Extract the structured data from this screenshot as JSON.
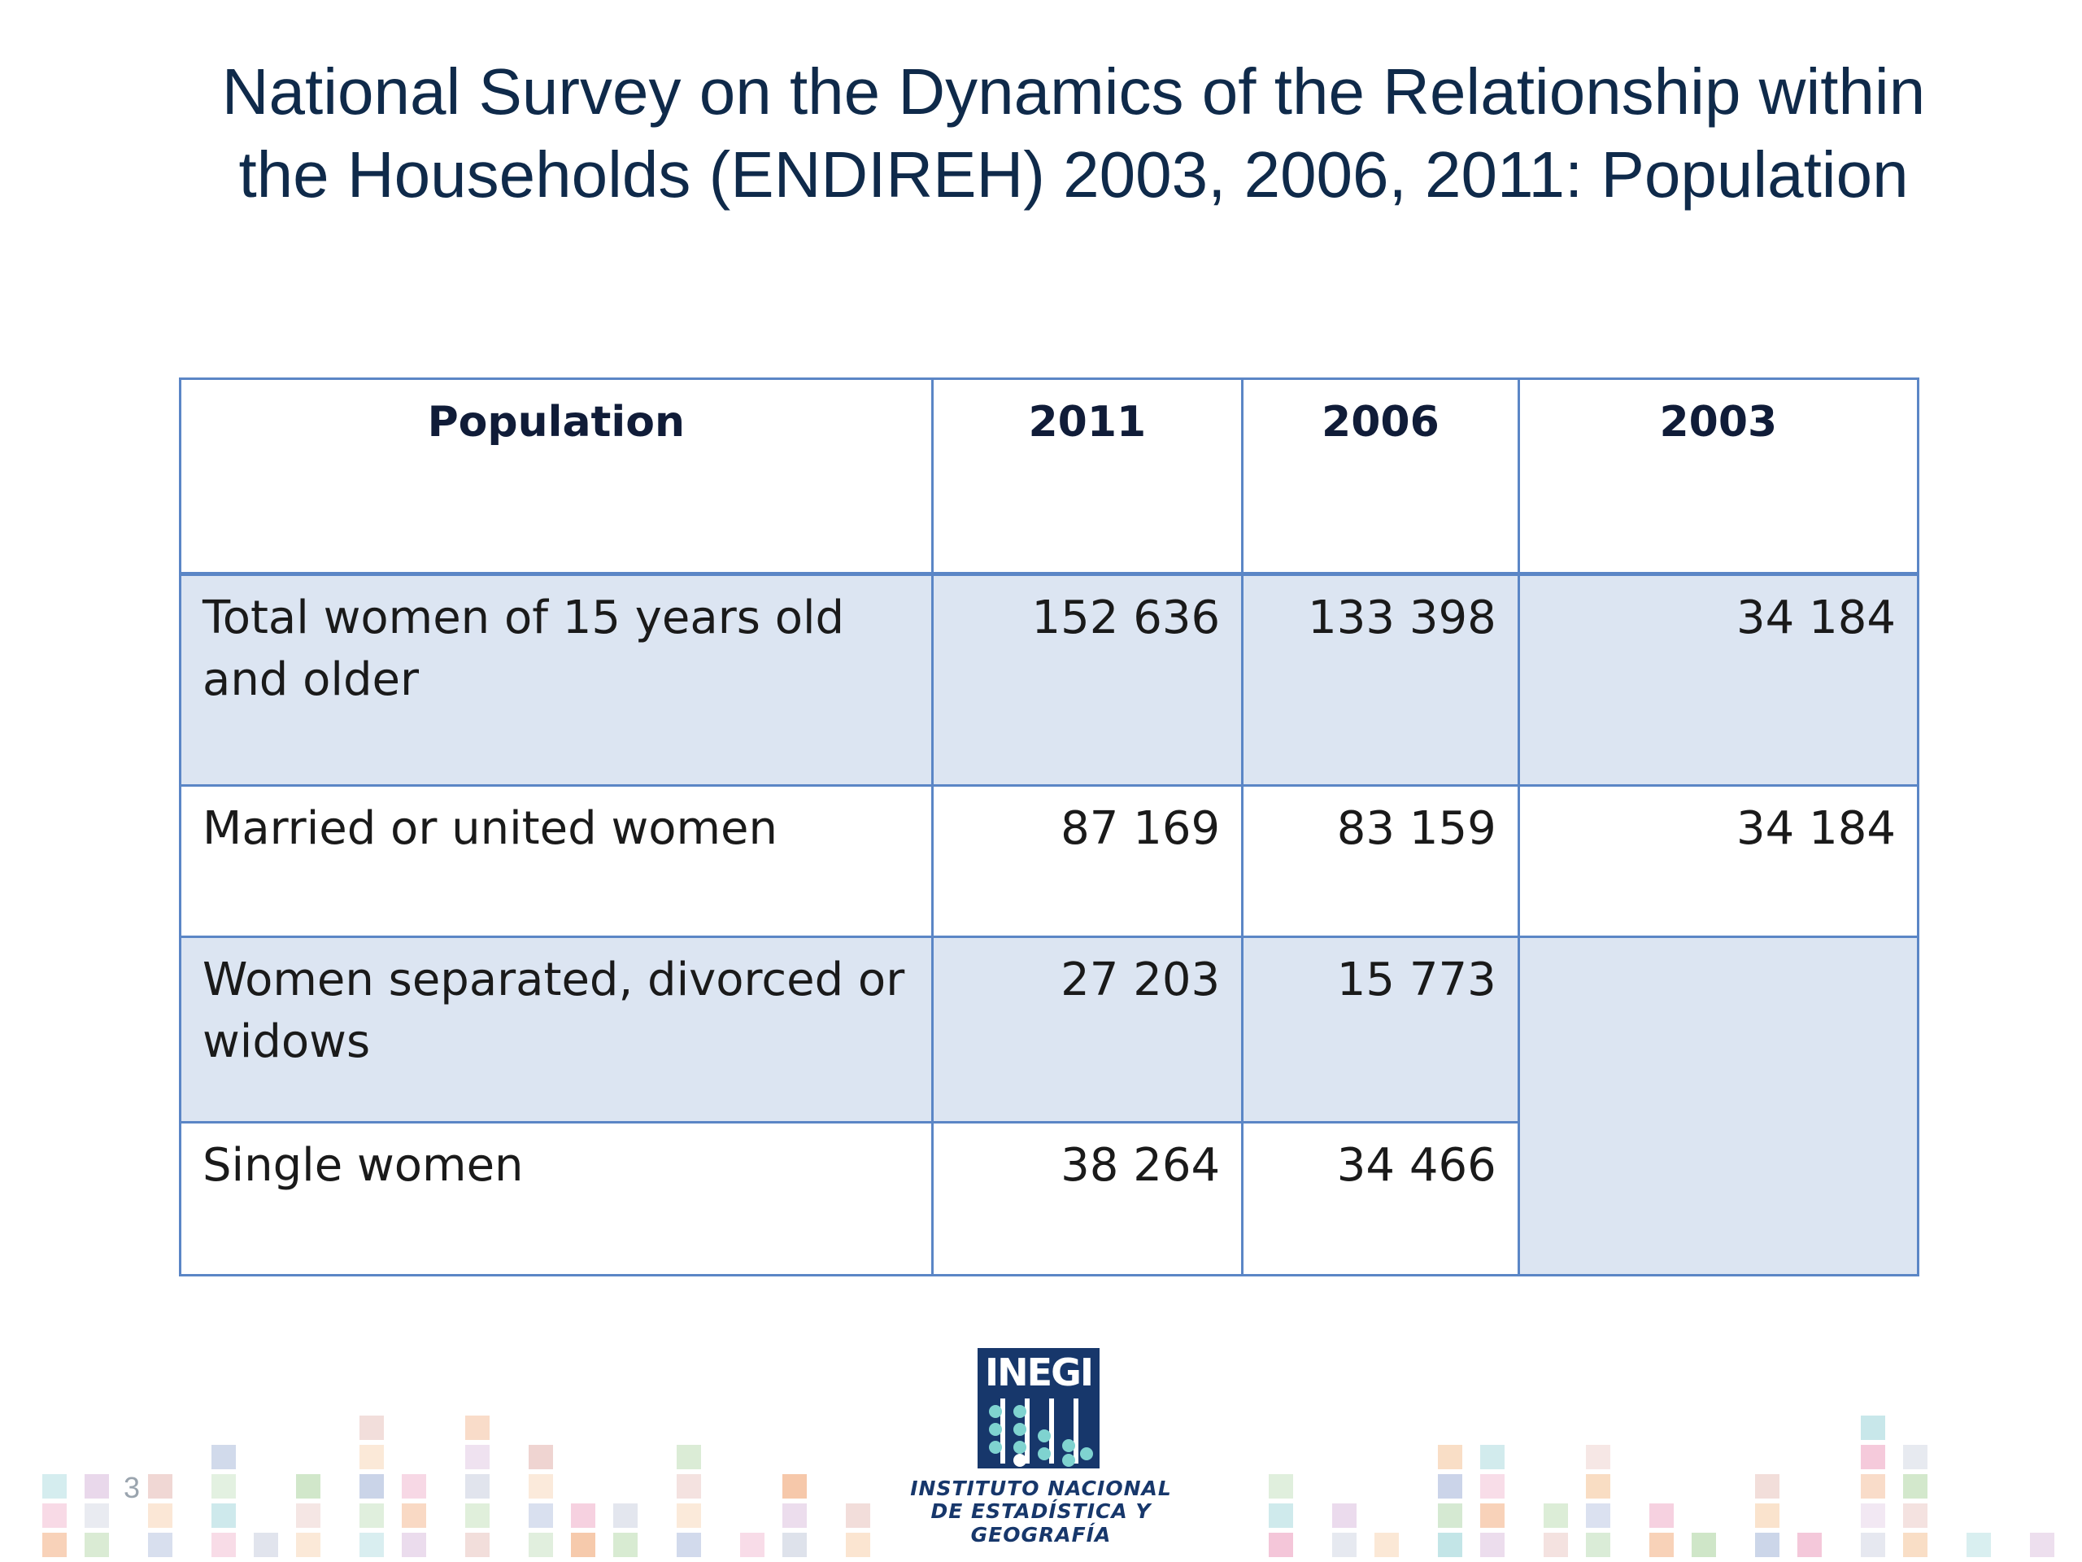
{
  "slide": {
    "title_line1": "National Survey on the Dynamics of the Relationship within",
    "title_line2": "the Households (ENDIREH) 2003, 2006, 2011: Population",
    "page_number": "3"
  },
  "table": {
    "headers": [
      "Population",
      "2011",
      "2006",
      "2003"
    ],
    "rows": [
      {
        "label": "Total women of 15 years old and older",
        "v2011": "152 636",
        "v2006": "133 398",
        "v2003": "34 184"
      },
      {
        "label": "Married or united women",
        "v2011": "87 169",
        "v2006": "83 159",
        "v2003": "34 184"
      },
      {
        "label": "Women separated, divorced or widows",
        "v2011": "27 203",
        "v2006": "15 773",
        "v2003": ""
      },
      {
        "label": "Single women",
        "v2011": "38 264",
        "v2006": "34 466"
      }
    ]
  },
  "logo": {
    "acronym": "INEGI",
    "line1": "INSTITUTO NACIONAL",
    "line2": "DE ESTADÍSTICA Y GEOGRAFÍA"
  },
  "colors": {
    "title": "#0f2a4a",
    "table_border": "#5b86c6",
    "row_shade": "#dce5f2",
    "logo_blue": "#17376b"
  }
}
